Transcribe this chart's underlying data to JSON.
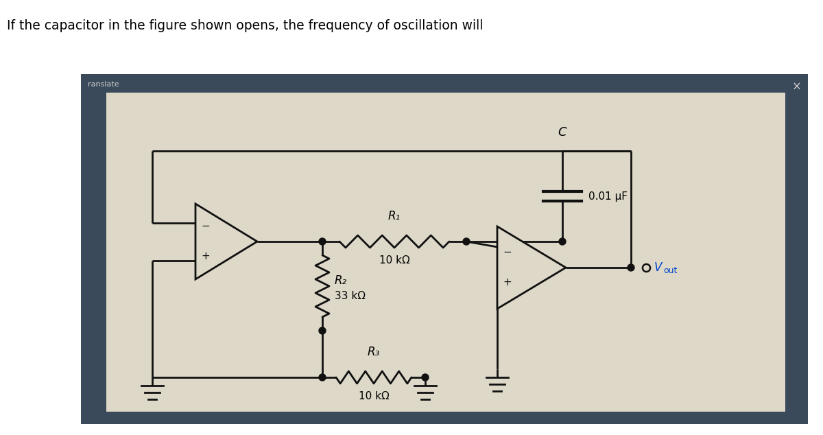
{
  "title_text": "If the capacitor in the figure shown opens, the frequency of oscillation will",
  "title_fontsize": 13.5,
  "bg_outer": "#ffffff",
  "bg_dark": "#3a4a5a",
  "bg_circuit": "#ddd8c8",
  "panel_label": "ranslate",
  "close_x": "×",
  "cap_label": "C",
  "cap_value": "0.01 μF",
  "r1_label": "R₁",
  "r1_value": "10 kΩ",
  "r2_label": "R₂",
  "r2_value": "33 kΩ",
  "r3_label": "R₃",
  "r3_value": "10 kΩ",
  "vout_v": "V",
  "vout_sub": "out",
  "lw": 2.0
}
